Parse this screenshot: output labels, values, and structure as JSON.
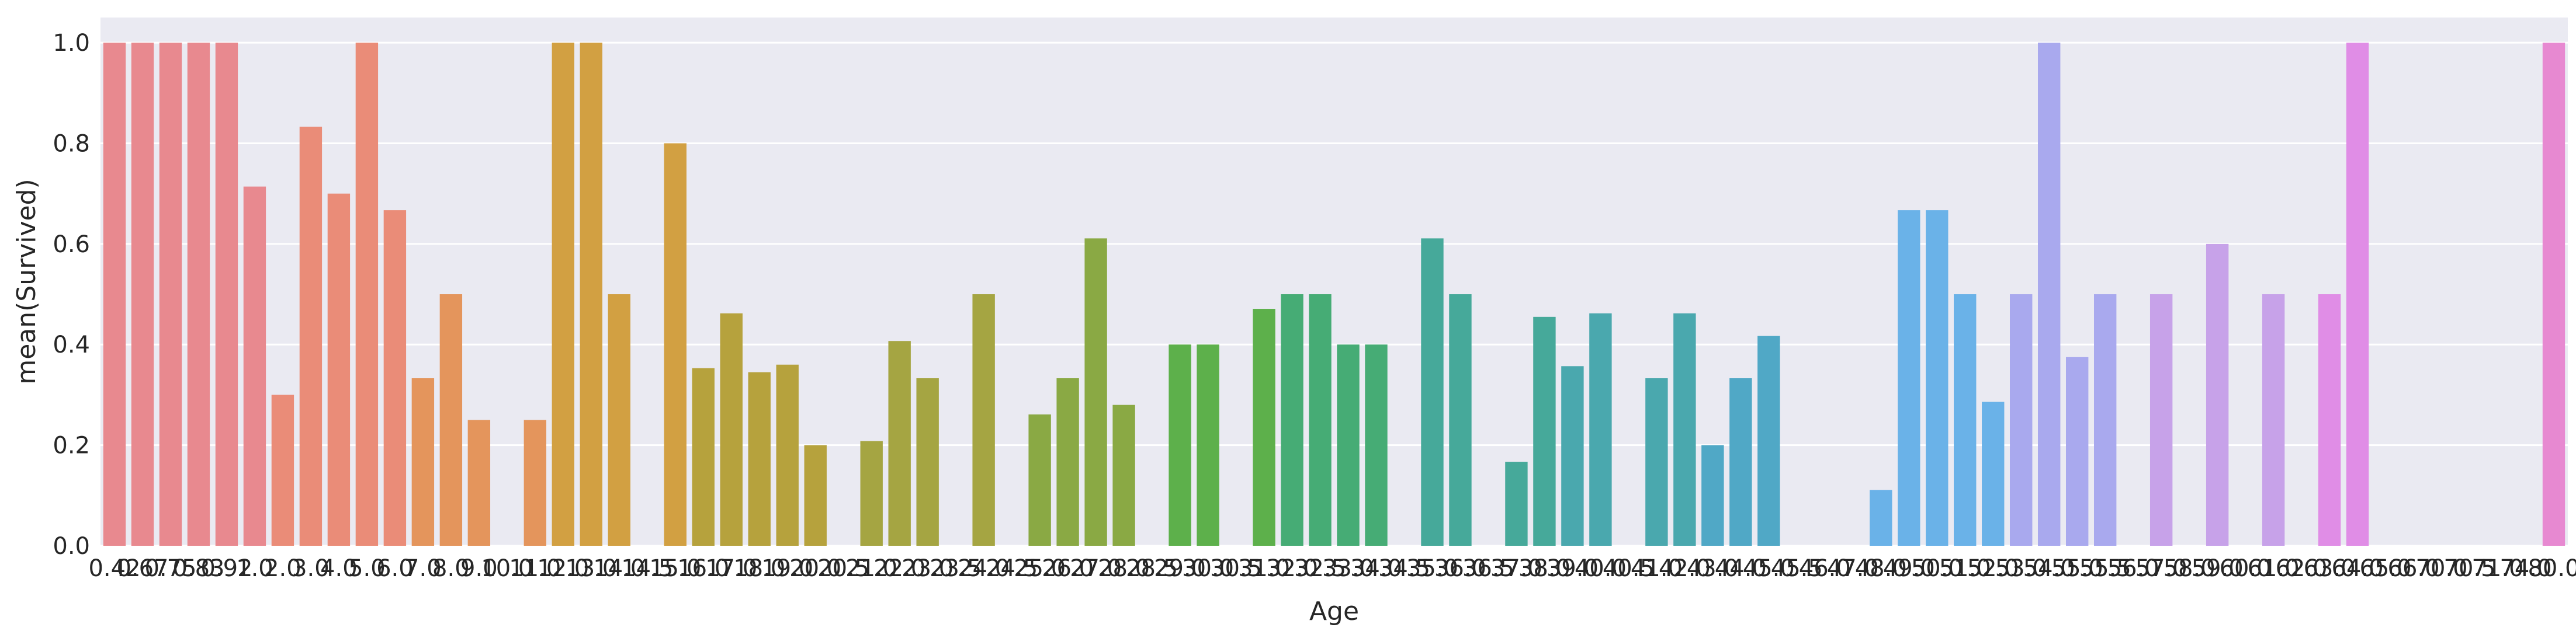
{
  "chart_data": {
    "type": "bar",
    "xlabel": "Age",
    "ylabel": "mean(Survived)",
    "ylim": [
      0,
      1.05
    ],
    "yticks": [
      "0.0",
      "0.2",
      "0.4",
      "0.6",
      "0.8",
      "1.0"
    ],
    "grid": true,
    "background": "#eaeaf2",
    "categories": [
      "0.42",
      "0.67",
      "0.75",
      "0.83",
      "0.92",
      "1.0",
      "2.0",
      "3.0",
      "4.0",
      "5.0",
      "6.0",
      "7.0",
      "8.0",
      "9.0",
      "10.0",
      "11.0",
      "12.0",
      "13.0",
      "14.0",
      "14.5",
      "15.0",
      "16.0",
      "17.0",
      "18.0",
      "19.0",
      "20.0",
      "20.5",
      "21.0",
      "22.0",
      "23.0",
      "23.5",
      "24.0",
      "24.5",
      "25.0",
      "26.0",
      "27.0",
      "28.0",
      "28.5",
      "29.0",
      "30.0",
      "30.5",
      "31.0",
      "32.0",
      "32.5",
      "33.0",
      "34.0",
      "34.5",
      "35.0",
      "36.0",
      "36.5",
      "37.0",
      "38.0",
      "39.0",
      "40.0",
      "40.5",
      "41.0",
      "42.0",
      "43.0",
      "44.0",
      "45.0",
      "45.5",
      "46.0",
      "47.0",
      "48.0",
      "49.0",
      "50.0",
      "51.0",
      "52.0",
      "53.0",
      "54.0",
      "55.0",
      "55.5",
      "56.0",
      "57.0",
      "58.0",
      "59.0",
      "60.0",
      "61.0",
      "62.0",
      "63.0",
      "64.0",
      "65.0",
      "66.0",
      "70.0",
      "70.5",
      "71.0",
      "74.0",
      "80.0"
    ],
    "tick_labels": [
      "0.42",
      "0.67",
      "0.75",
      "0.83",
      "0.92",
      "1.0",
      "2.0",
      "3.0",
      "4.0",
      "5.0",
      "6.0",
      "7.0",
      "8.0",
      "9.0",
      "10.0",
      "11.0",
      "12.0",
      "13.0",
      "14.0",
      "14.5",
      "15.0",
      "16.0",
      "17.0",
      "18.0",
      "19.0",
      "20.0",
      "20.5",
      "21.0",
      "22.0",
      "23.0",
      "23.5",
      "24.0",
      "24.5",
      "25.0",
      "26.0",
      "27.0",
      "28.0",
      "28.5",
      "29.0",
      "30.0",
      "30.5",
      "31.0",
      "32.0",
      "32.5",
      "33.0",
      "34.0",
      "34.5",
      "35.0",
      "36.0",
      "36.5",
      "37.0",
      "38.0",
      "39.0",
      "40.0",
      "40.5",
      "41.0",
      "42.0",
      "43.0",
      "44.0",
      "45.0",
      "45.5",
      "46.0",
      "47.0",
      "48.0",
      "49.0",
      "50.0",
      "51.0",
      "52.0",
      "53.0",
      "54.0",
      "55.0",
      "55.5",
      "56.0",
      "57.0",
      "58.0",
      "59.0",
      "60.0",
      "61.0",
      "62.0",
      "63.0",
      "64.0",
      "65.0",
      "66.0",
      "70.0",
      "70.5",
      "71.0",
      "74.0",
      "80.0"
    ],
    "values": [
      1.0,
      1.0,
      1.0,
      1.0,
      1.0,
      0.714,
      0.3,
      0.833,
      0.7,
      1.0,
      0.667,
      0.333,
      0.5,
      0.25,
      0.0,
      0.25,
      1.0,
      1.0,
      0.5,
      0.0,
      0.8,
      0.353,
      0.462,
      0.345,
      0.36,
      0.2,
      0.0,
      0.208,
      0.407,
      0.333,
      0.0,
      0.5,
      0.0,
      0.261,
      0.333,
      0.611,
      0.28,
      0.0,
      0.4,
      0.4,
      0.0,
      0.471,
      0.5,
      0.5,
      0.4,
      0.4,
      0.0,
      0.611,
      0.5,
      0.0,
      0.167,
      0.455,
      0.357,
      0.462,
      0.0,
      0.333,
      0.462,
      0.2,
      0.333,
      0.417,
      0.0,
      0.0,
      0.0,
      0.111,
      0.667,
      0.667,
      0.5,
      0.286,
      0.5,
      1.0,
      0.375,
      0.5,
      0.0,
      0.5,
      0.0,
      0.6,
      0.0,
      0.5,
      0.0,
      0.5,
      1.0,
      0.0,
      0.0,
      0.0,
      0.0,
      0.0,
      0.0,
      1.0
    ],
    "palette": [
      "#e8898f",
      "#ea8c78",
      "#e4955c",
      "#d2a042",
      "#b6a23d",
      "#a5a542",
      "#8aa944",
      "#5db04b",
      "#46ac75",
      "#46a99a",
      "#4aa8ae",
      "#50a8c6",
      "#6ab2e8",
      "#a9a9ee",
      "#c7a2e9",
      "#e08de6",
      "#e789d1"
    ]
  }
}
